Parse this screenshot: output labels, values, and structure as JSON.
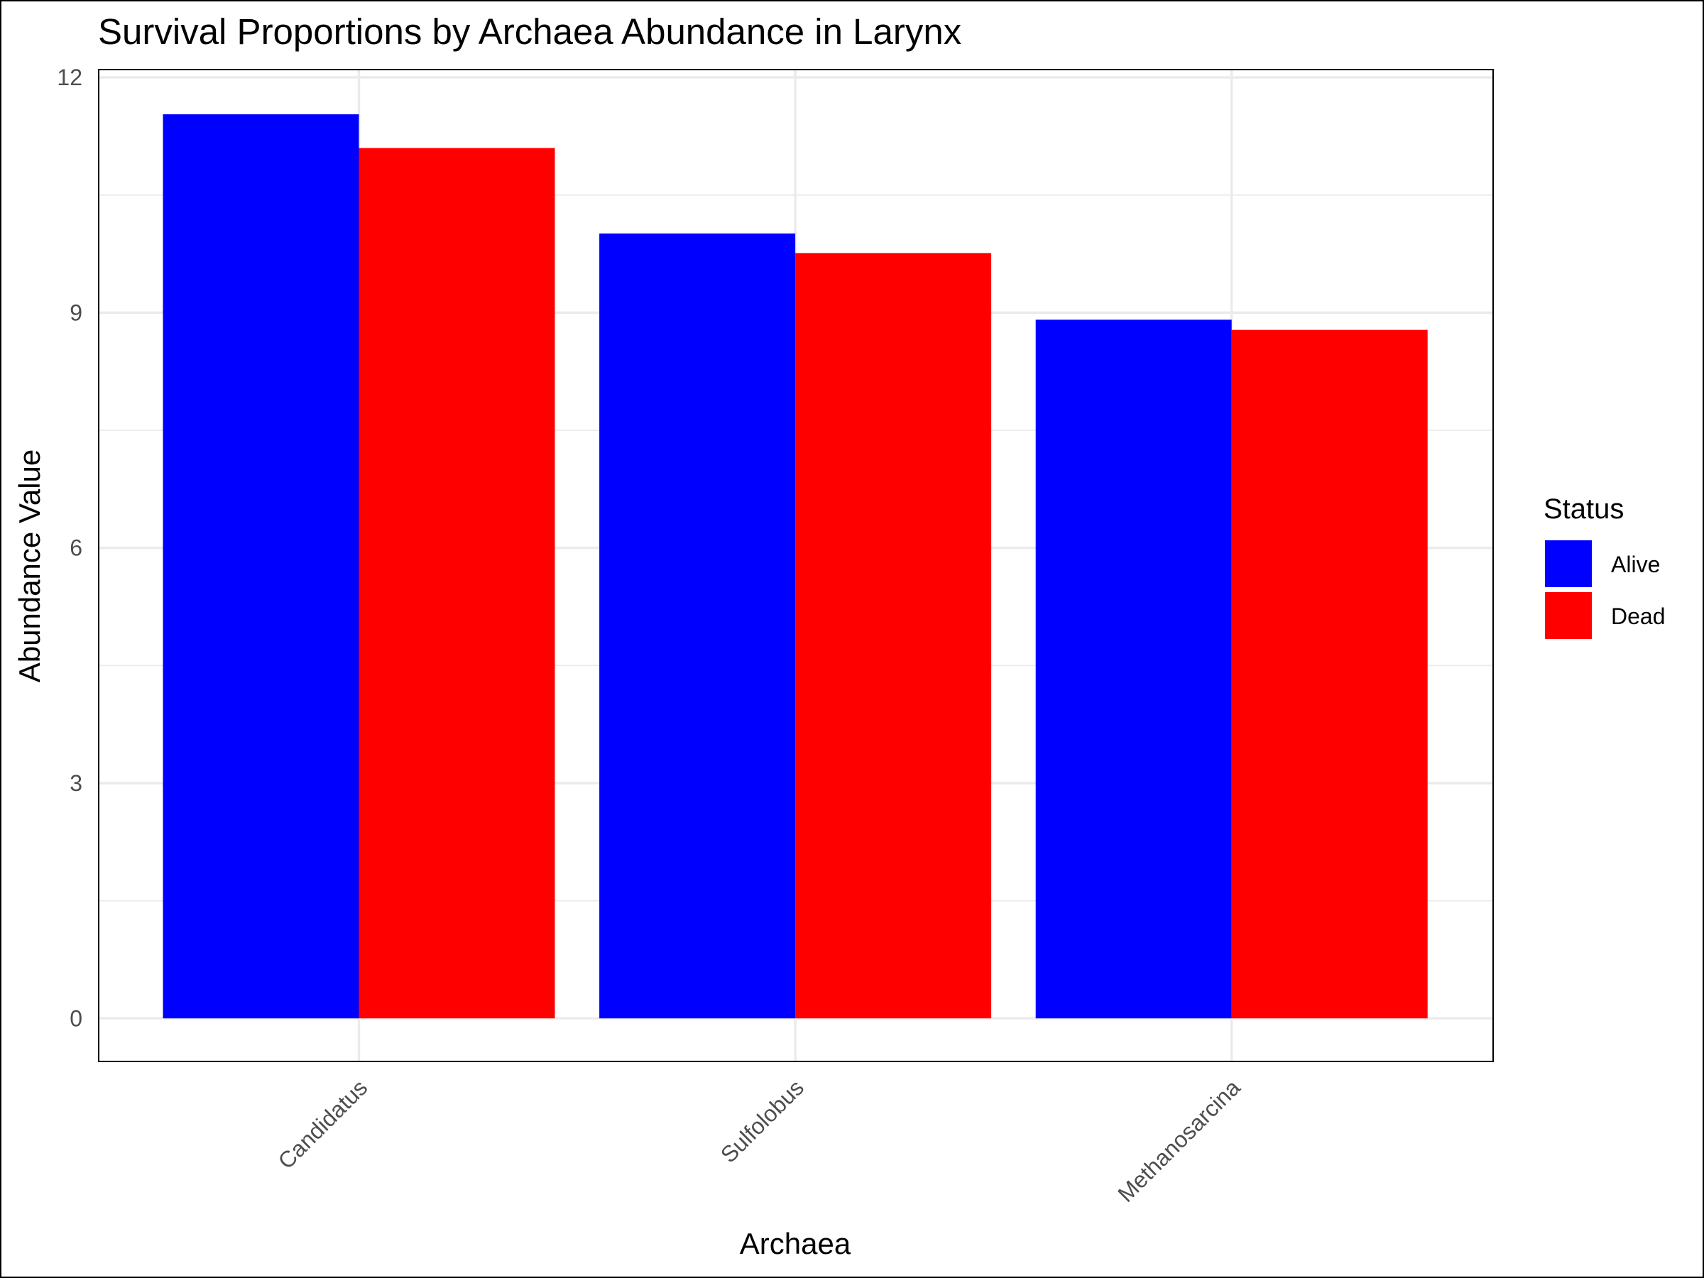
{
  "chart_data": {
    "type": "bar",
    "title": "Survival Proportions by Archaea Abundance in Larynx",
    "xlabel": "Archaea",
    "ylabel": "Abundance Value",
    "categories": [
      "Candidatus",
      "Sulfolobus",
      "Methanosarcina"
    ],
    "series": [
      {
        "name": "Alive",
        "color": "#0000ff",
        "values": [
          11.53,
          10.01,
          8.91
        ]
      },
      {
        "name": "Dead",
        "color": "#ff0000",
        "values": [
          11.1,
          9.76,
          8.78
        ]
      }
    ],
    "ylim": [
      -0.55,
      12.1
    ],
    "yticks": [
      0,
      3,
      6,
      9,
      12
    ],
    "ytick_labels": [
      "0",
      "3",
      "6",
      "9",
      "12"
    ],
    "grid": true,
    "legend": {
      "title": "Status",
      "position": "right"
    }
  }
}
